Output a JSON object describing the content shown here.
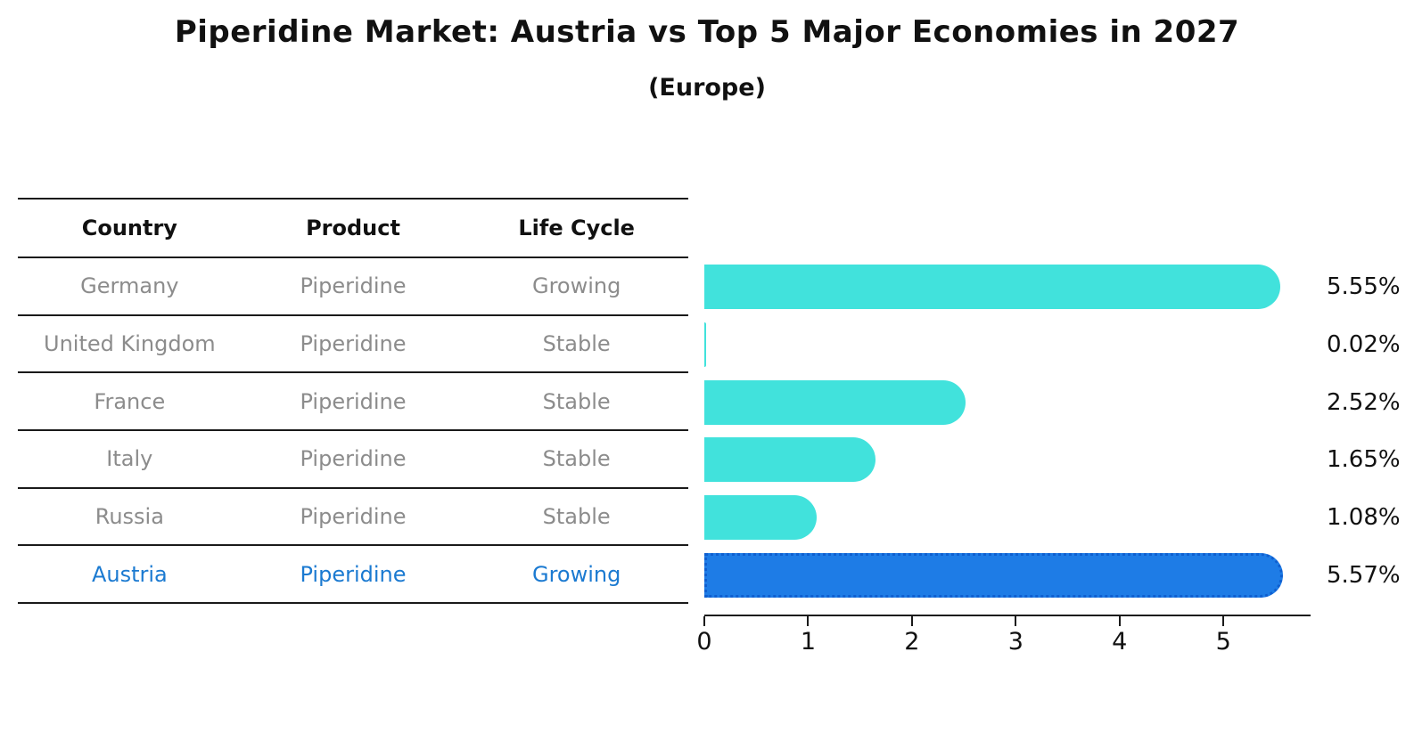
{
  "title": "Piperidine Market: Austria vs Top 5 Major Economies in 2027",
  "subtitle": "(Europe)",
  "table": {
    "headers": [
      "Country",
      "Product",
      "Life Cycle"
    ]
  },
  "chart_data": {
    "type": "bar",
    "orientation": "horizontal",
    "title": "Piperidine Market: Austria vs Top 5 Major Economies in 2027",
    "subtitle": "(Europe)",
    "xlabel": "",
    "ylabel": "",
    "xlim": [
      0,
      5.84
    ],
    "x_ticks": [
      0,
      1,
      2,
      3,
      4,
      5
    ],
    "grid": false,
    "legend": false,
    "rows": [
      {
        "country": "Germany",
        "product": "Piperidine",
        "life_cycle": "Growing",
        "value": 5.55,
        "value_label": "5.55%",
        "highlight": false
      },
      {
        "country": "United Kingdom",
        "product": "Piperidine",
        "life_cycle": "Stable",
        "value": 0.02,
        "value_label": "0.02%",
        "highlight": false
      },
      {
        "country": "France",
        "product": "Piperidine",
        "life_cycle": "Stable",
        "value": 2.52,
        "value_label": "2.52%",
        "highlight": false
      },
      {
        "country": "Italy",
        "product": "Piperidine",
        "life_cycle": "Stable",
        "value": 1.65,
        "value_label": "1.65%",
        "highlight": false
      },
      {
        "country": "Russia",
        "product": "Piperidine",
        "life_cycle": "Stable",
        "value": 1.08,
        "value_label": "1.08%",
        "highlight": false
      },
      {
        "country": "Austria",
        "product": "Piperidine",
        "life_cycle": "Growing",
        "value": 5.57,
        "value_label": "5.57%",
        "highlight": true
      }
    ]
  },
  "colors": {
    "bar": "#41e2dc",
    "highlight_bar": "#1e7ce6",
    "highlight_border": "#0f5fd0",
    "highlight_text": "#1b7ad1",
    "cell_text": "#8c8c8c",
    "header_text": "#111111",
    "value_text": "#111111",
    "line": "#1a1a1a"
  }
}
